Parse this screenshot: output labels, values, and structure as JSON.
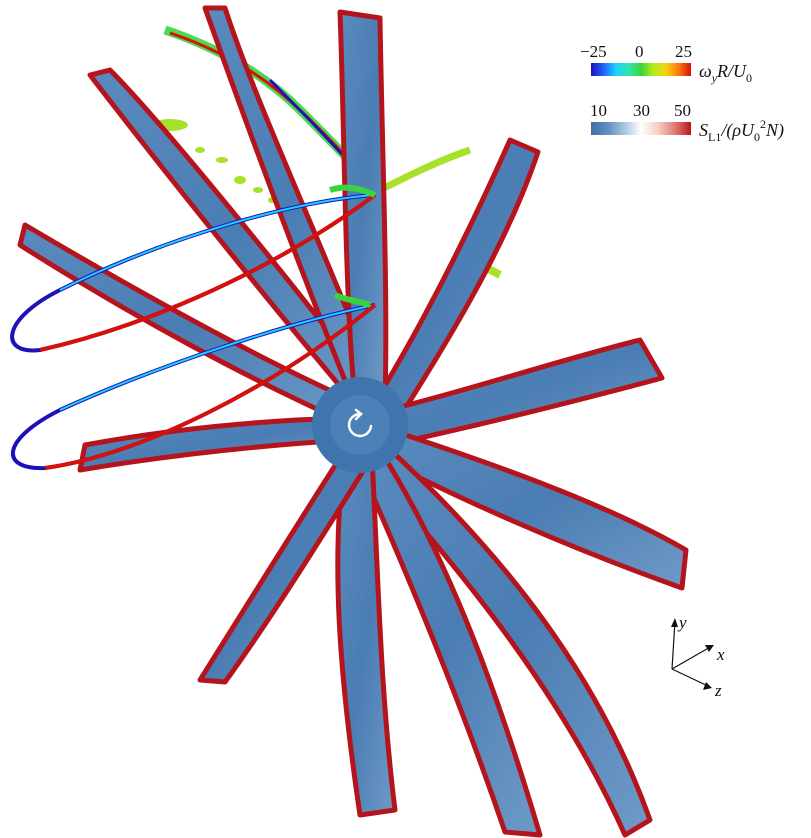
{
  "colorbars": [
    {
      "ticks": [
        "−25",
        "0",
        "25"
      ],
      "label": "ω_y R/U_0",
      "label_main": "ω",
      "label_sub": "y",
      "label_rest": "R/U",
      "label_sub2": "0",
      "range": [
        -25,
        25
      ],
      "colors": [
        "#1d12b8",
        "#1f60ff",
        "#1fd0ff",
        "#2ee6b0",
        "#39d43c",
        "#b6ea19",
        "#f4d214",
        "#ff7a10",
        "#d81008"
      ]
    },
    {
      "ticks": [
        "10",
        "30",
        "50"
      ],
      "label": "S_L1/(ρU_0^2 N)",
      "label_main": "S",
      "label_sub": "L1",
      "label_rest": "/(ρU",
      "label_sub2": "0",
      "label_sup": "2",
      "label_end": "N)",
      "range": [
        10,
        50
      ],
      "colors": [
        "#3e6ea3",
        "#5f8fbf",
        "#a9c5df",
        "#ffffff",
        "#f6cfc6",
        "#e07f76",
        "#b9151c"
      ]
    }
  ],
  "axes": {
    "y": "y",
    "x": "x",
    "z": "z"
  },
  "colors": {
    "blade": "#4f81b6",
    "blade_light": "#8fb2d6",
    "edge": "#b5141c",
    "vortex_pos": "#d81008",
    "vortex_neg": "#1d12b8",
    "vortex_mid": "#39d43c"
  },
  "rotation_icon": "rotation-arrow-icon"
}
